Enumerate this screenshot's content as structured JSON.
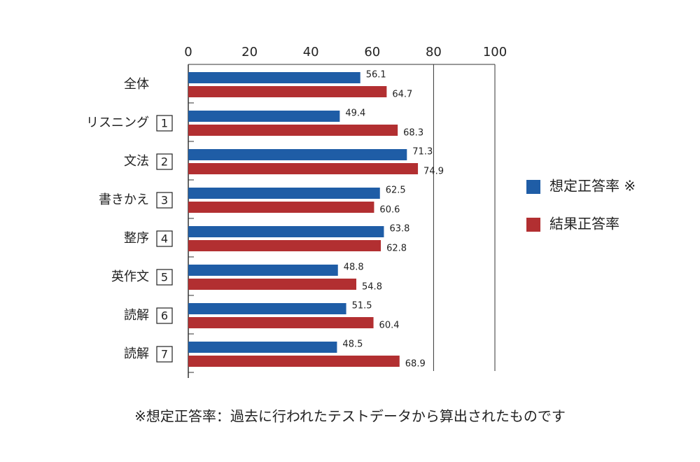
{
  "chart_data": {
    "type": "barh",
    "categories": [
      "全体",
      "リスニング",
      "文法",
      "書きかえ",
      "整序",
      "英作文",
      "読解",
      "読解"
    ],
    "category_numbers": [
      null,
      1,
      2,
      3,
      4,
      5,
      6,
      7
    ],
    "series": [
      {
        "name": "想定正答率 ※",
        "color": "#1f5da6",
        "values": [
          56.1,
          49.4,
          71.3,
          62.5,
          63.8,
          48.8,
          51.5,
          48.5
        ]
      },
      {
        "name": "結果正答率",
        "color": "#b22f31",
        "values": [
          64.7,
          68.3,
          74.9,
          60.6,
          62.8,
          54.8,
          60.4,
          68.9
        ]
      }
    ],
    "xlim": [
      0,
      100
    ],
    "xticks": [
      0,
      20,
      40,
      60,
      80,
      100
    ],
    "grid_at": [
      80,
      100
    ],
    "legend": "right",
    "footnote": "※想定正答率：過去に行われたテストデータから算出されたものです"
  }
}
